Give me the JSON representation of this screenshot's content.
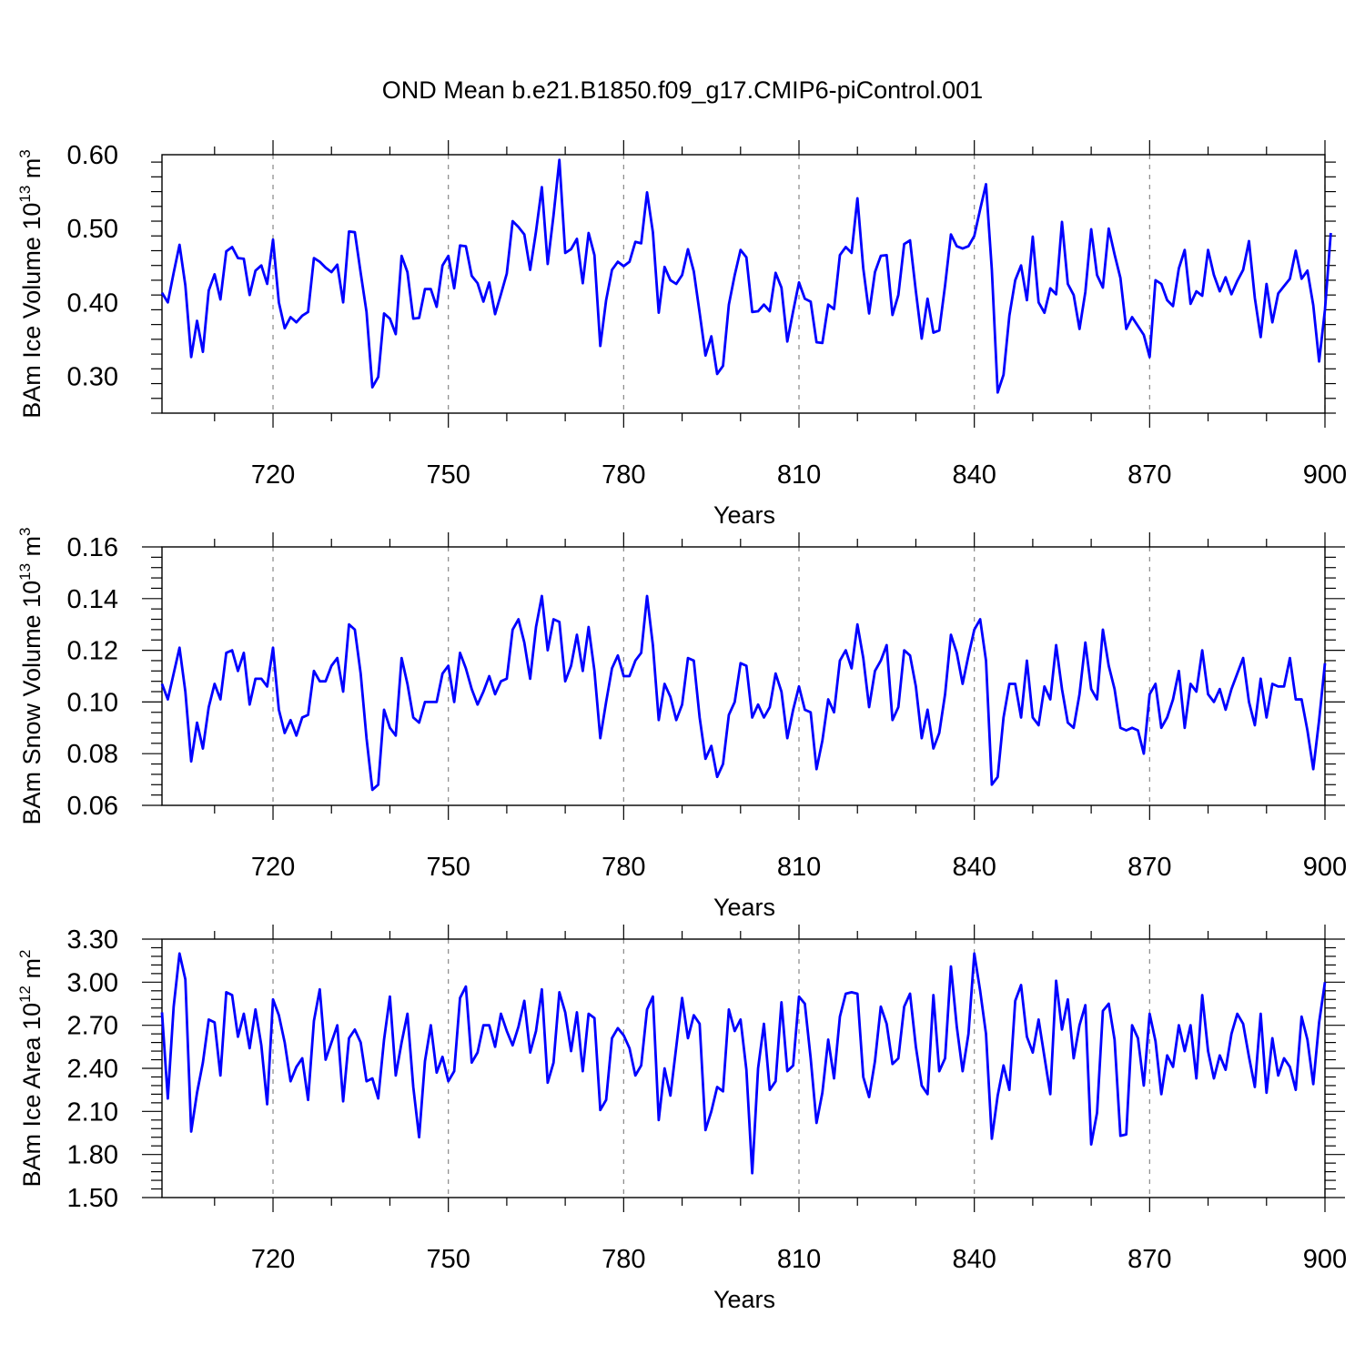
{
  "figure": {
    "title": "OND Mean b.e21.B1850.f09_g17.CMIP6-piControl.001",
    "line_color": "#0000ff",
    "grid_color": "#888888"
  },
  "chart_data": [
    {
      "type": "line",
      "title": "OND Mean b.e21.B1850.f09_g17.CMIP6-piControl.001",
      "xlabel": "Years",
      "ylabel_prefix": "BAm Ice Volume 10",
      "ylabel_exp": "13",
      "ylabel_unit": "m",
      "ylabel_unit_exp": "3",
      "xlim": [
        701,
        900
      ],
      "ylim": [
        0.25,
        0.6
      ],
      "xticks": [
        720,
        750,
        780,
        810,
        840,
        870,
        900
      ],
      "yticks": [
        0.3,
        0.4,
        0.5,
        0.6
      ],
      "ytick_labels": [
        "0.30",
        "0.40",
        "0.50",
        "0.60"
      ],
      "grid": "vertical dashed at major x ticks",
      "series": [
        {
          "name": "BAm Ice Volume",
          "x_start": 701,
          "x_step": 1,
          "values": [
            0.413,
            0.4,
            0.44,
            0.478,
            0.423,
            0.326,
            0.375,
            0.333,
            0.416,
            0.438,
            0.404,
            0.469,
            0.475,
            0.46,
            0.459,
            0.41,
            0.443,
            0.45,
            0.425,
            0.485,
            0.4,
            0.365,
            0.38,
            0.373,
            0.382,
            0.387,
            0.46,
            0.455,
            0.447,
            0.441,
            0.451,
            0.4,
            0.496,
            0.495,
            0.44,
            0.387,
            0.285,
            0.299,
            0.385,
            0.378,
            0.357,
            0.463,
            0.441,
            0.378,
            0.379,
            0.418,
            0.418,
            0.394,
            0.45,
            0.463,
            0.419,
            0.477,
            0.476,
            0.436,
            0.426,
            0.401,
            0.427,
            0.384,
            0.411,
            0.439,
            0.51,
            0.502,
            0.492,
            0.444,
            0.496,
            0.556,
            0.452,
            0.518,
            0.593,
            0.467,
            0.472,
            0.486,
            0.426,
            0.494,
            0.464,
            0.341,
            0.403,
            0.444,
            0.455,
            0.449,
            0.455,
            0.482,
            0.48,
            0.549,
            0.495,
            0.386,
            0.448,
            0.43,
            0.425,
            0.437,
            0.472,
            0.442,
            0.386,
            0.328,
            0.354,
            0.303,
            0.314,
            0.397,
            0.437,
            0.471,
            0.461,
            0.387,
            0.388,
            0.397,
            0.388,
            0.44,
            0.42,
            0.347,
            0.388,
            0.427,
            0.405,
            0.401,
            0.346,
            0.345,
            0.397,
            0.391,
            0.464,
            0.475,
            0.467,
            0.541,
            0.446,
            0.385,
            0.441,
            0.463,
            0.464,
            0.383,
            0.41,
            0.479,
            0.484,
            0.415,
            0.351,
            0.405,
            0.359,
            0.362,
            0.423,
            0.492,
            0.476,
            0.473,
            0.476,
            0.49,
            0.526,
            0.56,
            0.444,
            0.278,
            0.302,
            0.382,
            0.43,
            0.45,
            0.403,
            0.489,
            0.4,
            0.386,
            0.419,
            0.411,
            0.509,
            0.425,
            0.41,
            0.364,
            0.414,
            0.499,
            0.437,
            0.42,
            0.5,
            0.465,
            0.433,
            0.364,
            0.38,
            0.368,
            0.356,
            0.326,
            0.43,
            0.425,
            0.403,
            0.395,
            0.446,
            0.471,
            0.398,
            0.415,
            0.409,
            0.471,
            0.437,
            0.415,
            0.434,
            0.411,
            0.429,
            0.444,
            0.483,
            0.406,
            0.353,
            0.425,
            0.373,
            0.412,
            0.422,
            0.432,
            0.47,
            0.432,
            0.443,
            0.396,
            0.32,
            0.39,
            0.494
          ]
        }
      ]
    },
    {
      "type": "line",
      "xlabel": "Years",
      "ylabel_prefix": "BAm Snow Volume 10",
      "ylabel_exp": "13",
      "ylabel_unit": "m",
      "ylabel_unit_exp": "3",
      "xlim": [
        701,
        900
      ],
      "ylim": [
        0.06,
        0.16
      ],
      "xticks": [
        720,
        750,
        780,
        810,
        840,
        870,
        900
      ],
      "yticks": [
        0.06,
        0.08,
        0.1,
        0.12,
        0.14,
        0.16
      ],
      "ytick_labels": [
        "0.06",
        "0.08",
        "0.10",
        "0.12",
        "0.14",
        "0.16"
      ],
      "grid": "vertical dashed at major x ticks",
      "series": [
        {
          "name": "BAm Snow Volume",
          "x_start": 701,
          "x_step": 1,
          "values": [
            0.107,
            0.101,
            0.111,
            0.121,
            0.104,
            0.077,
            0.092,
            0.082,
            0.098,
            0.107,
            0.101,
            0.119,
            0.12,
            0.112,
            0.119,
            0.099,
            0.109,
            0.109,
            0.106,
            0.121,
            0.097,
            0.088,
            0.093,
            0.087,
            0.094,
            0.095,
            0.112,
            0.108,
            0.108,
            0.114,
            0.117,
            0.104,
            0.13,
            0.128,
            0.111,
            0.086,
            0.066,
            0.068,
            0.097,
            0.09,
            0.087,
            0.117,
            0.107,
            0.094,
            0.092,
            0.1,
            0.1,
            0.1,
            0.111,
            0.114,
            0.1,
            0.119,
            0.113,
            0.105,
            0.099,
            0.104,
            0.11,
            0.103,
            0.108,
            0.109,
            0.128,
            0.132,
            0.123,
            0.109,
            0.129,
            0.141,
            0.12,
            0.132,
            0.131,
            0.108,
            0.114,
            0.126,
            0.112,
            0.129,
            0.112,
            0.086,
            0.1,
            0.113,
            0.118,
            0.11,
            0.11,
            0.116,
            0.119,
            0.141,
            0.122,
            0.093,
            0.107,
            0.102,
            0.093,
            0.099,
            0.117,
            0.116,
            0.094,
            0.078,
            0.083,
            0.071,
            0.076,
            0.095,
            0.1,
            0.115,
            0.114,
            0.094,
            0.099,
            0.094,
            0.098,
            0.111,
            0.104,
            0.086,
            0.097,
            0.106,
            0.097,
            0.096,
            0.074,
            0.085,
            0.101,
            0.096,
            0.116,
            0.12,
            0.113,
            0.13,
            0.117,
            0.098,
            0.112,
            0.116,
            0.122,
            0.093,
            0.098,
            0.12,
            0.118,
            0.106,
            0.086,
            0.097,
            0.082,
            0.088,
            0.103,
            0.126,
            0.119,
            0.107,
            0.118,
            0.128,
            0.132,
            0.116,
            0.068,
            0.071,
            0.094,
            0.107,
            0.107,
            0.094,
            0.116,
            0.094,
            0.091,
            0.106,
            0.101,
            0.122,
            0.105,
            0.092,
            0.09,
            0.103,
            0.123,
            0.105,
            0.101,
            0.128,
            0.114,
            0.105,
            0.09,
            0.089,
            0.09,
            0.089,
            0.08,
            0.103,
            0.107,
            0.09,
            0.094,
            0.101,
            0.112,
            0.09,
            0.107,
            0.104,
            0.12,
            0.103,
            0.1,
            0.105,
            0.097,
            0.105,
            0.111,
            0.117,
            0.1,
            0.091,
            0.109,
            0.094,
            0.107,
            0.106,
            0.106,
            0.117,
            0.101,
            0.101,
            0.089,
            0.074,
            0.093,
            0.115
          ]
        }
      ]
    },
    {
      "type": "line",
      "xlabel": "Years",
      "ylabel_prefix": "BAm Ice Area 10",
      "ylabel_exp": "12",
      "ylabel_unit": "m",
      "ylabel_unit_exp": "2",
      "xlim": [
        701,
        900
      ],
      "ylim": [
        1.5,
        3.3
      ],
      "xticks": [
        720,
        750,
        780,
        810,
        840,
        870,
        900
      ],
      "yticks": [
        1.5,
        1.8,
        2.1,
        2.4,
        2.7,
        3.0,
        3.3
      ],
      "ytick_labels": [
        "1.50",
        "1.80",
        "2.10",
        "2.40",
        "2.70",
        "3.00",
        "3.30"
      ],
      "grid": "vertical dashed at major x ticks",
      "series": [
        {
          "name": "BAm Ice Area",
          "x_start": 701,
          "x_step": 1,
          "values": [
            2.79,
            2.19,
            2.83,
            3.2,
            3.02,
            1.96,
            2.23,
            2.44,
            2.74,
            2.72,
            2.35,
            2.93,
            2.91,
            2.62,
            2.78,
            2.54,
            2.81,
            2.56,
            2.15,
            2.88,
            2.77,
            2.58,
            2.31,
            2.41,
            2.47,
            2.18,
            2.73,
            2.95,
            2.46,
            2.58,
            2.7,
            2.17,
            2.61,
            2.67,
            2.58,
            2.31,
            2.33,
            2.19,
            2.6,
            2.9,
            2.35,
            2.58,
            2.78,
            2.27,
            1.92,
            2.45,
            2.7,
            2.37,
            2.48,
            2.31,
            2.38,
            2.89,
            2.97,
            2.44,
            2.51,
            2.7,
            2.7,
            2.55,
            2.78,
            2.66,
            2.56,
            2.69,
            2.87,
            2.51,
            2.66,
            2.95,
            2.3,
            2.44,
            2.93,
            2.79,
            2.52,
            2.79,
            2.38,
            2.78,
            2.75,
            2.11,
            2.18,
            2.61,
            2.68,
            2.63,
            2.54,
            2.35,
            2.42,
            2.81,
            2.9,
            2.04,
            2.4,
            2.21,
            2.55,
            2.89,
            2.61,
            2.77,
            2.71,
            1.97,
            2.1,
            2.27,
            2.24,
            2.81,
            2.66,
            2.74,
            2.39,
            1.67,
            2.4,
            2.71,
            2.25,
            2.31,
            2.86,
            2.38,
            2.42,
            2.9,
            2.85,
            2.47,
            2.02,
            2.23,
            2.6,
            2.33,
            2.76,
            2.92,
            2.93,
            2.92,
            2.34,
            2.2,
            2.45,
            2.83,
            2.71,
            2.43,
            2.47,
            2.83,
            2.92,
            2.55,
            2.28,
            2.22,
            2.91,
            2.38,
            2.47,
            3.11,
            2.69,
            2.38,
            2.64,
            3.2,
            2.94,
            2.64,
            1.91,
            2.21,
            2.42,
            2.25,
            2.87,
            2.98,
            2.62,
            2.51,
            2.74,
            2.48,
            2.22,
            3.01,
            2.67,
            2.88,
            2.47,
            2.7,
            2.84,
            1.87,
            2.09,
            2.8,
            2.85,
            2.6,
            1.93,
            1.94,
            2.7,
            2.61,
            2.28,
            2.78,
            2.59,
            2.22,
            2.49,
            2.41,
            2.7,
            2.52,
            2.7,
            2.33,
            2.91,
            2.52,
            2.33,
            2.49,
            2.39,
            2.64,
            2.78,
            2.71,
            2.48,
            2.27,
            2.78,
            2.23,
            2.61,
            2.35,
            2.47,
            2.41,
            2.25,
            2.76,
            2.6,
            2.29,
            2.72,
            3.0
          ]
        }
      ]
    }
  ]
}
